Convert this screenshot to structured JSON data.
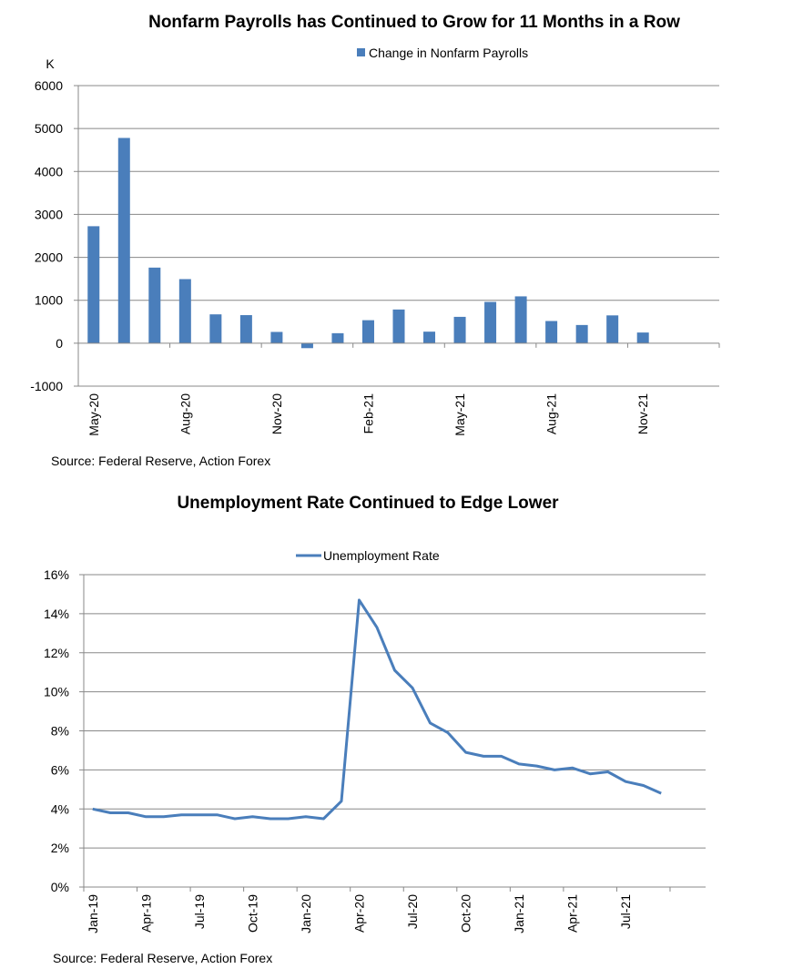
{
  "chart_data": [
    {
      "type": "bar",
      "title": "Nonfarm Payrolls has Continued to Grow for 11 Months in a Row",
      "ylabel": "K",
      "ylim": [
        -1000,
        6000
      ],
      "yticks": [
        6000,
        5000,
        4000,
        3000,
        2000,
        1000,
        0,
        -1000
      ],
      "categories": [
        "May-20",
        "Jun-20",
        "Jul-20",
        "Aug-20",
        "Sep-20",
        "Oct-20",
        "Nov-20",
        "Dec-20",
        "Jan-21",
        "Feb-21",
        "Mar-21",
        "Apr-21",
        "May-21",
        "Jun-21",
        "Jul-21",
        "Aug-21",
        "Sep-21",
        "Oct-21",
        "Nov-21",
        "Dec-21",
        "Jan-22"
      ],
      "xtick_labels": [
        "May-20",
        "Aug-20",
        "Nov-20",
        "Feb-21",
        "May-21",
        "Aug-21",
        "Nov-21"
      ],
      "series": [
        {
          "name": "Change in Nonfarm Payrolls",
          "color": "#4a7ebb",
          "values": [
            2725,
            4781,
            1761,
            1493,
            672,
            654,
            263,
            -115,
            233,
            536,
            785,
            269,
            614,
            962,
            1091,
            517,
            424,
            648,
            249,
            null,
            null
          ]
        }
      ],
      "legend_position": "top",
      "grid": true,
      "source": "Source: Federal Reserve, Action Forex"
    },
    {
      "type": "line",
      "title": "Unemployment Rate Continued to Edge Lower",
      "ylim": [
        0,
        16
      ],
      "yticks": [
        "16%",
        "14%",
        "12%",
        "10%",
        "8%",
        "6%",
        "4%",
        "2%",
        "0%"
      ],
      "x": [
        "Jan-19",
        "Feb-19",
        "Mar-19",
        "Apr-19",
        "May-19",
        "Jun-19",
        "Jul-19",
        "Aug-19",
        "Sep-19",
        "Oct-19",
        "Nov-19",
        "Dec-19",
        "Jan-20",
        "Feb-20",
        "Mar-20",
        "Apr-20",
        "May-20",
        "Jun-20",
        "Jul-20",
        "Aug-20",
        "Sep-20",
        "Oct-20",
        "Nov-20",
        "Dec-20",
        "Jan-21",
        "Feb-21",
        "Mar-21",
        "Apr-21",
        "May-21",
        "Jun-21",
        "Jul-21",
        "Aug-21",
        "Sep-21",
        "Oct-21",
        "Nov-21"
      ],
      "xtick_labels": [
        "Jan-19",
        "Apr-19",
        "Jul-19",
        "Oct-19",
        "Jan-20",
        "Apr-20",
        "Jul-20",
        "Oct-20",
        "Jan-21",
        "Apr-21",
        "Jul-21"
      ],
      "series": [
        {
          "name": "Unemployment Rate",
          "color": "#4a7ebb",
          "values": [
            4.0,
            3.8,
            3.8,
            3.6,
            3.6,
            3.7,
            3.7,
            3.7,
            3.5,
            3.6,
            3.5,
            3.5,
            3.6,
            3.5,
            4.4,
            14.7,
            13.3,
            11.1,
            10.2,
            8.4,
            7.9,
            6.9,
            6.7,
            6.7,
            6.3,
            6.2,
            6.0,
            6.1,
            5.8,
            5.9,
            5.4,
            5.2,
            4.8,
            null,
            null
          ]
        }
      ],
      "legend_position": "top",
      "grid": true,
      "source": "Source: Federal Reserve, Action Forex"
    }
  ]
}
